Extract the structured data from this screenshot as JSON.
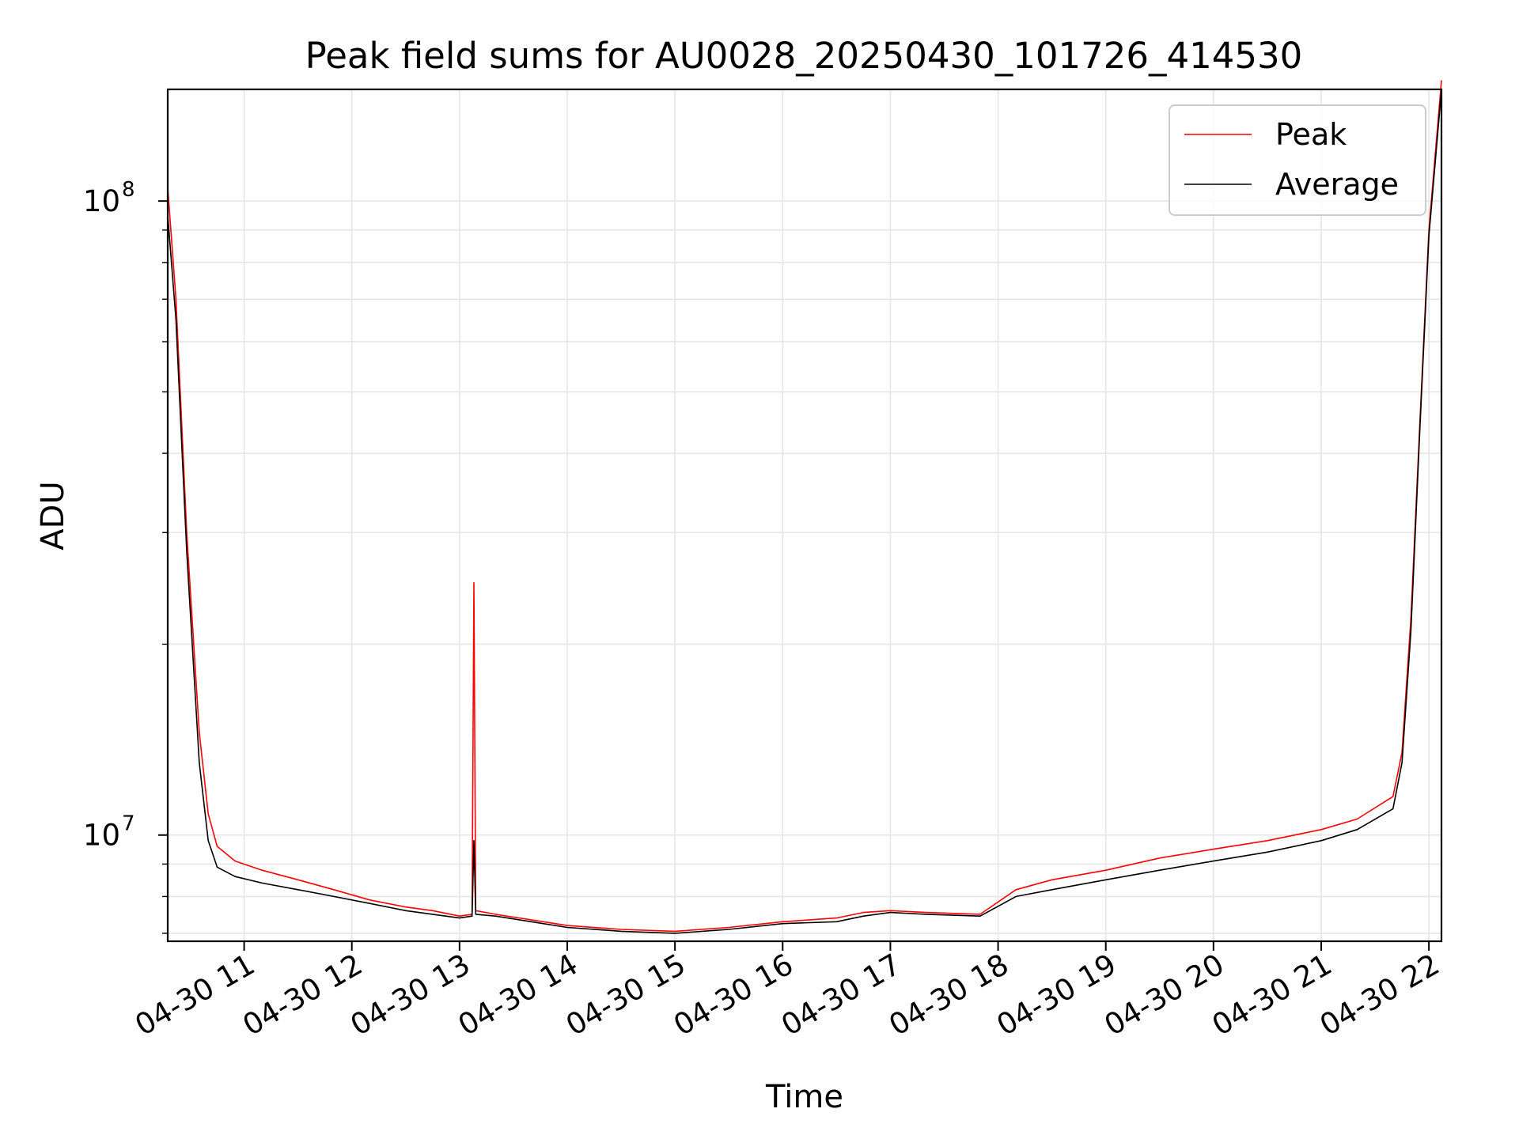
{
  "chart_data": {
    "type": "line",
    "title": "Peak field sums for AU0028_20250430_101726_414530",
    "xlabel": "Time",
    "ylabel": "ADU",
    "y_scale": "log",
    "xlim": [
      "2025-04-30T10:17:26",
      "2025-04-30T22:07:00"
    ],
    "ylim": [
      6800000,
      150000000
    ],
    "x_ticks": [
      {
        "value": "2025-04-30T11:00",
        "label": "04-30 11"
      },
      {
        "value": "2025-04-30T12:00",
        "label": "04-30 12"
      },
      {
        "value": "2025-04-30T13:00",
        "label": "04-30 13"
      },
      {
        "value": "2025-04-30T14:00",
        "label": "04-30 14"
      },
      {
        "value": "2025-04-30T15:00",
        "label": "04-30 15"
      },
      {
        "value": "2025-04-30T16:00",
        "label": "04-30 16"
      },
      {
        "value": "2025-04-30T17:00",
        "label": "04-30 17"
      },
      {
        "value": "2025-04-30T18:00",
        "label": "04-30 18"
      },
      {
        "value": "2025-04-30T19:00",
        "label": "04-30 19"
      },
      {
        "value": "2025-04-30T20:00",
        "label": "04-30 20"
      },
      {
        "value": "2025-04-30T21:00",
        "label": "04-30 21"
      },
      {
        "value": "2025-04-30T22:00",
        "label": "04-30 22"
      }
    ],
    "y_ticks": [
      {
        "value": 10000000,
        "base": "10",
        "exp": "7"
      },
      {
        "value": 100000000,
        "base": "10",
        "exp": "8"
      }
    ],
    "grid": true,
    "legend": {
      "position": "top-right"
    },
    "series": [
      {
        "name": "Peak",
        "color": "#ff0000",
        "x": [
          "2025-04-30T10:17:26",
          "2025-04-30T10:22",
          "2025-04-30T10:28",
          "2025-04-30T10:35",
          "2025-04-30T10:40",
          "2025-04-30T10:45",
          "2025-04-30T10:55",
          "2025-04-30T11:10",
          "2025-04-30T11:30",
          "2025-04-30T11:50",
          "2025-04-30T12:10",
          "2025-04-30T12:30",
          "2025-04-30T12:45",
          "2025-04-30T13:00",
          "2025-04-30T13:07",
          "2025-04-30T13:08",
          "2025-04-30T13:09",
          "2025-04-30T13:20",
          "2025-04-30T13:40",
          "2025-04-30T14:00",
          "2025-04-30T14:30",
          "2025-04-30T15:00",
          "2025-04-30T15:30",
          "2025-04-30T16:00",
          "2025-04-30T16:30",
          "2025-04-30T16:45",
          "2025-04-30T17:00",
          "2025-04-30T17:20",
          "2025-04-30T17:50",
          "2025-04-30T18:10",
          "2025-04-30T18:30",
          "2025-04-30T19:00",
          "2025-04-30T19:30",
          "2025-04-30T20:00",
          "2025-04-30T20:30",
          "2025-04-30T21:00",
          "2025-04-30T21:20",
          "2025-04-30T21:40",
          "2025-04-30T21:45",
          "2025-04-30T21:50",
          "2025-04-30T21:55",
          "2025-04-30T22:00",
          "2025-04-30T22:07"
        ],
        "y": [
          105000000,
          70000000,
          30000000,
          14500000,
          10800000,
          9600000,
          9100000,
          8800000,
          8500000,
          8200000,
          7900000,
          7700000,
          7600000,
          7450000,
          7500000,
          25000000,
          7600000,
          7500000,
          7350000,
          7200000,
          7100000,
          7050000,
          7150000,
          7300000,
          7400000,
          7550000,
          7600000,
          7550000,
          7500000,
          8200000,
          8500000,
          8800000,
          9200000,
          9500000,
          9800000,
          10200000,
          10600000,
          11500000,
          13500000,
          22000000,
          45000000,
          90000000,
          155000000
        ]
      },
      {
        "name": "Average",
        "color": "#000000",
        "x": [
          "2025-04-30T10:17:26",
          "2025-04-30T10:22",
          "2025-04-30T10:28",
          "2025-04-30T10:35",
          "2025-04-30T10:40",
          "2025-04-30T10:45",
          "2025-04-30T10:55",
          "2025-04-30T11:10",
          "2025-04-30T11:30",
          "2025-04-30T11:50",
          "2025-04-30T12:10",
          "2025-04-30T12:30",
          "2025-04-30T12:45",
          "2025-04-30T13:00",
          "2025-04-30T13:07",
          "2025-04-30T13:08",
          "2025-04-30T13:09",
          "2025-04-30T13:20",
          "2025-04-30T13:40",
          "2025-04-30T14:00",
          "2025-04-30T14:30",
          "2025-04-30T15:00",
          "2025-04-30T15:30",
          "2025-04-30T16:00",
          "2025-04-30T16:30",
          "2025-04-30T16:45",
          "2025-04-30T17:00",
          "2025-04-30T17:20",
          "2025-04-30T17:50",
          "2025-04-30T18:10",
          "2025-04-30T18:30",
          "2025-04-30T19:00",
          "2025-04-30T19:30",
          "2025-04-30T20:00",
          "2025-04-30T20:30",
          "2025-04-30T21:00",
          "2025-04-30T21:20",
          "2025-04-30T21:40",
          "2025-04-30T21:45",
          "2025-04-30T21:50",
          "2025-04-30T21:55",
          "2025-04-30T22:00",
          "2025-04-30T22:07"
        ],
        "y": [
          95000000,
          65000000,
          28000000,
          13000000,
          9800000,
          8900000,
          8600000,
          8400000,
          8200000,
          8000000,
          7800000,
          7600000,
          7500000,
          7400000,
          7450000,
          9800000,
          7500000,
          7450000,
          7300000,
          7150000,
          7050000,
          7000000,
          7100000,
          7250000,
          7300000,
          7450000,
          7550000,
          7500000,
          7450000,
          8000000,
          8200000,
          8500000,
          8800000,
          9100000,
          9400000,
          9800000,
          10200000,
          11000000,
          13000000,
          21000000,
          44000000,
          88000000,
          150000000
        ]
      }
    ]
  }
}
